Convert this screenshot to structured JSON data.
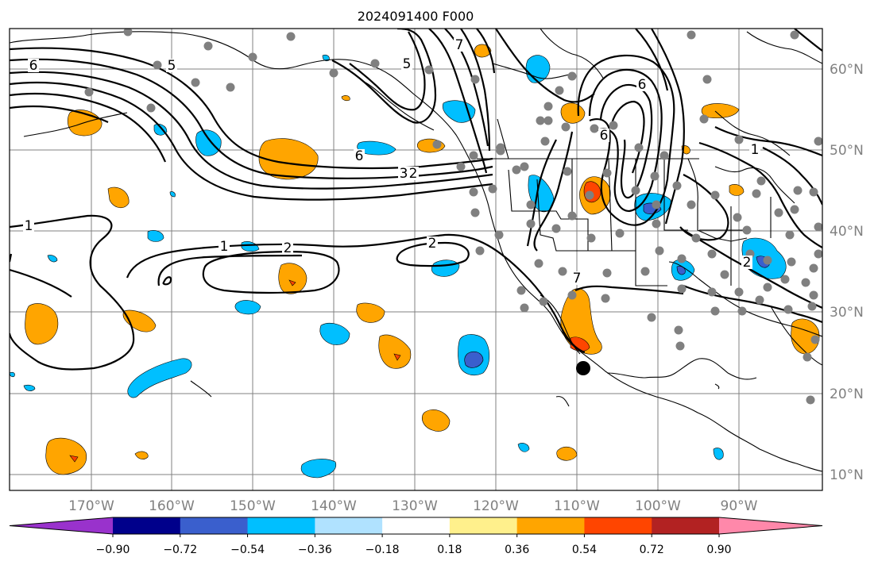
{
  "title": "2024091400 F000",
  "map": {
    "lon_labels": [
      "170°W",
      "160°W",
      "150°W",
      "140°W",
      "130°W",
      "120°W",
      "110°W",
      "100°W",
      "90°W"
    ],
    "lat_labels": [
      "60°N",
      "50°N",
      "40°N",
      "30°N",
      "20°N",
      "10°N"
    ],
    "contour_labels": [
      "6",
      "5",
      "5",
      "7",
      "6",
      "6",
      "3",
      "2",
      "1",
      "1",
      "2",
      "2",
      "1",
      "2",
      "6",
      "7"
    ]
  },
  "colorbar": {
    "tick_labels": [
      "−0.90",
      "−0.72",
      "−0.54",
      "−0.36",
      "−0.18",
      "0.18",
      "0.36",
      "0.54",
      "0.72",
      "0.90"
    ],
    "colors": [
      "#9932cc",
      "#00008b",
      "#3a5fcd",
      "#00bfff",
      "#b0e2ff",
      "#ffffff",
      "#fff08c",
      "#ffa500",
      "#ff4500",
      "#b22222",
      "#ff88aa"
    ]
  },
  "colors": {
    "frame": "#000000",
    "grid": "#808080",
    "station": "#808080",
    "contour": "#000000"
  }
}
